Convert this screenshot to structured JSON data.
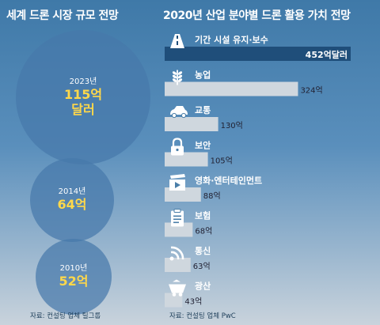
{
  "left": {
    "title": "세계 드론 시장 규모 전망",
    "source": "자료: 컨설팅 업체 틸그룹",
    "bubbles": [
      {
        "year": "2023년",
        "value_line1": "115억",
        "value_line2": "달러"
      },
      {
        "year": "2014년",
        "value_line1": "64억",
        "value_line2": ""
      },
      {
        "year": "2010년",
        "value_line1": "52억",
        "value_line2": ""
      }
    ]
  },
  "right": {
    "title": "2020년 산업 분야별 드론 활용 가치 전망",
    "source": "자료: 컨설팅 업체 PwC"
  },
  "chart_data": [
    {
      "type": "bubble",
      "title": "세계 드론 시장 규모 전망",
      "unit": "억 달러",
      "categories": [
        "2023년",
        "2014년",
        "2010년"
      ],
      "values": [
        115,
        64,
        52
      ]
    },
    {
      "type": "bar",
      "title": "2020년 산업 분야별 드론 활용 가치 전망",
      "unit": "억 달러",
      "categories": [
        "기간 시설 유지·보수",
        "농업",
        "교통",
        "보안",
        "영화·엔터테인먼트",
        "보험",
        "통신",
        "광산"
      ],
      "values": [
        452,
        324,
        130,
        105,
        88,
        68,
        63,
        43
      ],
      "value_labels": [
        "452억달러",
        "324억",
        "130억",
        "105억",
        "88억",
        "68억",
        "63억",
        "43억"
      ],
      "icons": [
        "road-icon",
        "wheat-icon",
        "car-icon",
        "lock-icon",
        "film-camera-icon",
        "clipboard-icon",
        "signal-icon",
        "mine-cart-icon"
      ],
      "colors": {
        "bar": "#cfd7de",
        "highlight": "#1f4e7a"
      }
    }
  ]
}
